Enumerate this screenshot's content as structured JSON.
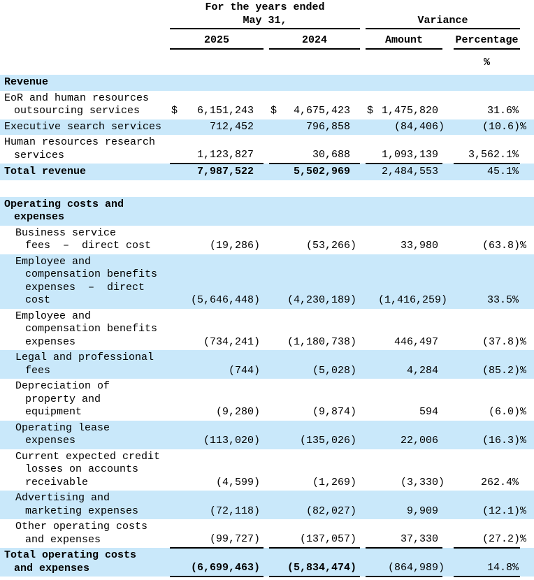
{
  "header": {
    "years_group_line1": "For the  years ended",
    "years_group_line2": "May  31,",
    "variance_group": "Variance",
    "col_2025": "2025",
    "col_2024": "2024",
    "col_amount": "Amount",
    "col_percentage": "Percentage",
    "percent_symbol": "%"
  },
  "colors": {
    "band_blue": "#c9e8fa",
    "text": "#000000",
    "rule": "#000000",
    "background": "#ffffff"
  },
  "rows": [
    {
      "name": "revenue-header",
      "band": true,
      "bold": true,
      "indent": 0,
      "label_lines": [
        "Revenue"
      ],
      "cur_2025": "",
      "v_2025": "",
      "cur_2024": "",
      "v_2024": "",
      "cur_amount": "",
      "v_amount": "",
      "v_pct": "",
      "underline": false,
      "bold_main_values": false
    },
    {
      "name": "eor-human-resources-outsourcing",
      "band": false,
      "bold": false,
      "indent": 0,
      "label_lines": [
        "EoR and human resources",
        "outsourcing services"
      ],
      "cur_2025": "$",
      "v_2025": "6,151,243",
      "cur_2024": "$",
      "v_2024": "4,675,423",
      "cur_amount": "$",
      "v_amount": "1,475,820",
      "v_pct": "31.6%",
      "underline": false,
      "bold_main_values": false
    },
    {
      "name": "executive-search-services",
      "band": true,
      "bold": false,
      "indent": 0,
      "label_lines": [
        "Executive search services"
      ],
      "cur_2025": "",
      "v_2025": "712,452",
      "cur_2024": "",
      "v_2024": "796,858",
      "cur_amount": "",
      "v_amount": "(84,406)",
      "v_pct": "(10.6)%",
      "underline": false,
      "bold_main_values": false
    },
    {
      "name": "human-resources-research-services",
      "band": false,
      "bold": false,
      "indent": 0,
      "label_lines": [
        "Human resources research",
        "services"
      ],
      "cur_2025": "",
      "v_2025": "1,123,827",
      "cur_2024": "",
      "v_2024": "30,688",
      "cur_amount": "",
      "v_amount": "1,093,139",
      "v_pct": "3,562.1%",
      "underline": true,
      "bold_main_values": false
    },
    {
      "name": "total-revenue",
      "band": true,
      "bold": true,
      "indent": 0,
      "label_lines": [
        "Total revenue"
      ],
      "cur_2025": "",
      "v_2025": "7,987,522",
      "cur_2024": "",
      "v_2024": "5,502,969",
      "cur_amount": "",
      "v_amount": "2,484,553",
      "v_pct": "45.1%",
      "underline": false,
      "bold_main_values": true
    },
    {
      "name": "section-gap",
      "spacer": true
    },
    {
      "name": "operating-costs-header",
      "band": true,
      "bold": true,
      "indent": 0,
      "label_lines": [
        "Operating costs and",
        "expenses"
      ],
      "cur_2025": "",
      "v_2025": "",
      "cur_2024": "",
      "v_2024": "",
      "cur_amount": "",
      "v_amount": "",
      "v_pct": "",
      "underline": false,
      "bold_main_values": false
    },
    {
      "name": "business-service-fees-direct-cost",
      "band": false,
      "bold": false,
      "indent": 1,
      "label_lines": [
        "Business service",
        "fees  –  direct cost"
      ],
      "cur_2025": "",
      "v_2025": "(19,286)",
      "cur_2024": "",
      "v_2024": "(53,266)",
      "cur_amount": "",
      "v_amount": "33,980",
      "v_pct": "(63.8)%",
      "underline": false,
      "bold_main_values": false
    },
    {
      "name": "employee-compensation-benefits-direct-cost",
      "band": true,
      "bold": false,
      "indent": 1,
      "label_lines": [
        "Employee and",
        "compensation benefits",
        "expenses  –  direct",
        "cost"
      ],
      "cur_2025": "",
      "v_2025": "(5,646,448)",
      "cur_2024": "",
      "v_2024": "(4,230,189)",
      "cur_amount": "",
      "v_amount": "(1,416,259)",
      "v_pct": "33.5%",
      "underline": false,
      "bold_main_values": false
    },
    {
      "name": "employee-compensation-benefits-expenses",
      "band": false,
      "bold": false,
      "indent": 1,
      "label_lines": [
        "Employee and",
        "compensation benefits",
        "expenses"
      ],
      "cur_2025": "",
      "v_2025": "(734,241)",
      "cur_2024": "",
      "v_2024": "(1,180,738)",
      "cur_amount": "",
      "v_amount": "446,497",
      "v_pct": "(37.8)%",
      "underline": false,
      "bold_main_values": false
    },
    {
      "name": "legal-and-professional-fees",
      "band": true,
      "bold": false,
      "indent": 1,
      "label_lines": [
        "Legal and professional",
        "fees"
      ],
      "cur_2025": "",
      "v_2025": "(744)",
      "cur_2024": "",
      "v_2024": "(5,028)",
      "cur_amount": "",
      "v_amount": "4,284",
      "v_pct": "(85.2)%",
      "underline": false,
      "bold_main_values": false
    },
    {
      "name": "depreciation-property-equipment",
      "band": false,
      "bold": false,
      "indent": 1,
      "label_lines": [
        "Depreciation of",
        "property and",
        "equipment"
      ],
      "cur_2025": "",
      "v_2025": "(9,280)",
      "cur_2024": "",
      "v_2024": "(9,874)",
      "cur_amount": "",
      "v_amount": "594",
      "v_pct": "(6.0)%",
      "underline": false,
      "bold_main_values": false
    },
    {
      "name": "operating-lease-expenses",
      "band": true,
      "bold": false,
      "indent": 1,
      "label_lines": [
        "Operating lease",
        "expenses"
      ],
      "cur_2025": "",
      "v_2025": "(113,020)",
      "cur_2024": "",
      "v_2024": "(135,026)",
      "cur_amount": "",
      "v_amount": "22,006",
      "v_pct": "(16.3)%",
      "underline": false,
      "bold_main_values": false
    },
    {
      "name": "current-expected-credit-losses",
      "band": false,
      "bold": false,
      "indent": 1,
      "label_lines": [
        "Current expected credit",
        "losses on accounts",
        "receivable"
      ],
      "cur_2025": "",
      "v_2025": "(4,599)",
      "cur_2024": "",
      "v_2024": "(1,269)",
      "cur_amount": "",
      "v_amount": "(3,330)",
      "v_pct": "262.4%",
      "underline": false,
      "bold_main_values": false
    },
    {
      "name": "advertising-and-marketing-expenses",
      "band": true,
      "bold": false,
      "indent": 1,
      "label_lines": [
        "Advertising and",
        "marketing expenses"
      ],
      "cur_2025": "",
      "v_2025": "(72,118)",
      "cur_2024": "",
      "v_2024": "(82,027)",
      "cur_amount": "",
      "v_amount": "9,909",
      "v_pct": "(12.1)%",
      "underline": false,
      "bold_main_values": false
    },
    {
      "name": "other-operating-costs-and-expenses",
      "band": false,
      "bold": false,
      "indent": 1,
      "label_lines": [
        "Other operating costs",
        "and expenses"
      ],
      "cur_2025": "",
      "v_2025": "(99,727)",
      "cur_2024": "",
      "v_2024": "(137,057)",
      "cur_amount": "",
      "v_amount": "37,330",
      "v_pct": "(27.2)%",
      "underline": true,
      "bold_main_values": false
    },
    {
      "name": "total-operating-costs-and-expenses",
      "band": true,
      "bold": true,
      "indent": 0,
      "label_lines": [
        "Total operating costs",
        "and expenses"
      ],
      "cur_2025": "",
      "v_2025": "(6,699,463)",
      "cur_2024": "",
      "v_2024": "(5,834,474)",
      "cur_amount": "",
      "v_amount": "(864,989)",
      "v_pct": "14.8%",
      "underline": true,
      "bold_main_values": true
    }
  ]
}
